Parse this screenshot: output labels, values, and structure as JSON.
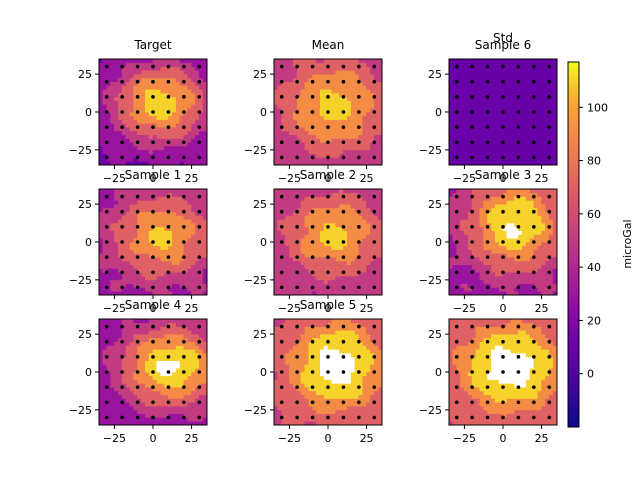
{
  "chart_data": {
    "type": "heatmap",
    "style": "filled-contour",
    "colormap": "plasma",
    "xlim": [
      -35,
      35
    ],
    "ylim": [
      -35,
      35
    ],
    "xticks": [
      "−25",
      "0",
      "25"
    ],
    "yticks": [
      "25",
      "0",
      "−25"
    ],
    "tick_values": [
      -25,
      0,
      25
    ],
    "grid": false,
    "colorbar": {
      "label": "microGal",
      "range": [
        -20,
        117
      ],
      "ticks": [
        "0",
        "20",
        "40",
        "60",
        "80",
        "100"
      ],
      "tick_values": [
        0,
        20,
        40,
        60,
        80,
        100
      ]
    },
    "panels": [
      {
        "title": "Target",
        "cx": 5,
        "cy": 6,
        "sx": 32,
        "sy": 27,
        "peak": 112,
        "base": 12
      },
      {
        "title": "Mean",
        "cx": 4,
        "cy": 4,
        "sx": 33,
        "sy": 30,
        "peak": 108,
        "base": 42
      },
      {
        "title": "Std\nSample 6",
        "cx": 0,
        "cy": 0,
        "sx": 40,
        "sy": 40,
        "peak": 0,
        "base": 3
      },
      {
        "title": "Sample 1",
        "cx": 6,
        "cy": 4,
        "sx": 32,
        "sy": 28,
        "peak": 104,
        "base": 28
      },
      {
        "title": "Sample 2",
        "cx": 4,
        "cy": 5,
        "sx": 30,
        "sy": 26,
        "peak": 106,
        "base": 40
      },
      {
        "title": "Sample 3",
        "cx": 8,
        "cy": 12,
        "sx": 30,
        "sy": 30,
        "peak": 124,
        "base": 30
      },
      {
        "title": "Sample 4",
        "cx": 12,
        "cy": 4,
        "sx": 32,
        "sy": 26,
        "peak": 124,
        "base": 24
      },
      {
        "title": "Sample 5",
        "cx": 6,
        "cy": 4,
        "sx": 30,
        "sy": 30,
        "peak": 134,
        "base": 52
      },
      {
        "title": "",
        "cx": 5,
        "cy": 3,
        "sx": 33,
        "sy": 28,
        "peak": 136,
        "base": 56
      }
    ]
  }
}
